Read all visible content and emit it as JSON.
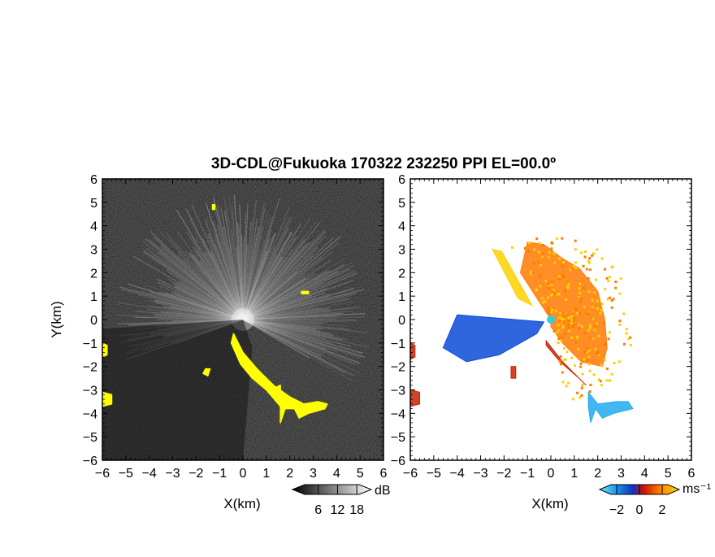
{
  "title": "3D-CDL@Fukuoka 170322 232250 PPI EL=00.0º",
  "chart_data": [
    {
      "type": "heatmap",
      "panel": "left",
      "quantity": "backscatter intensity",
      "xlabel": "X(km)",
      "ylabel": "Y(km)",
      "xlim": [
        -6,
        6
      ],
      "ylim": [
        -6,
        6
      ],
      "x_ticks": [
        "-6",
        "-5",
        "-4",
        "-3",
        "-2",
        "-1",
        "0",
        "1",
        "2",
        "3",
        "4",
        "5",
        "6"
      ],
      "y_ticks": [
        "-6",
        "-5",
        "-4",
        "-3",
        "-2",
        "-1",
        "0",
        "1",
        "2",
        "3",
        "4",
        "5",
        "6"
      ],
      "colorbar": {
        "unit": "dB",
        "ticks": [
          "6",
          "12",
          "18"
        ],
        "range": [
          0,
          21
        ]
      },
      "colors": {
        "background": "#1a1a1a",
        "rays": "#f0f0f0",
        "echo": "#ffff00"
      },
      "echo_regions": [
        {
          "name": "lower-right echo band",
          "points": [
            [
              -0.4,
              -0.6
            ],
            [
              0,
              -1.4
            ],
            [
              0.6,
              -2.1
            ],
            [
              1.3,
              -2.8
            ],
            [
              2.0,
              -3.3
            ],
            [
              2.6,
              -3.6
            ],
            [
              3.2,
              -3.5
            ],
            [
              3.6,
              -3.6
            ],
            [
              3.5,
              -3.8
            ],
            [
              2.8,
              -4.0
            ],
            [
              2.4,
              -4.2
            ],
            [
              2.2,
              -3.8
            ],
            [
              1.8,
              -3.8
            ],
            [
              1.6,
              -4.4
            ],
            [
              1.6,
              -3.7
            ],
            [
              1.0,
              -3.0
            ],
            [
              0.4,
              -2.5
            ],
            [
              -0.1,
              -1.9
            ],
            [
              -0.5,
              -1.0
            ]
          ]
        },
        {
          "name": "west edge echo upper",
          "points": [
            [
              -6,
              -1.0
            ],
            [
              -5.8,
              -1.1
            ],
            [
              -5.8,
              -1.5
            ],
            [
              -6,
              -1.6
            ]
          ]
        },
        {
          "name": "west edge echo lower",
          "points": [
            [
              -6,
              -3.1
            ],
            [
              -5.6,
              -3.2
            ],
            [
              -5.6,
              -3.6
            ],
            [
              -6,
              -3.7
            ]
          ]
        },
        {
          "name": "echo speck 1",
          "points": [
            [
              -1.6,
              -2.1
            ],
            [
              -1.4,
              -2.1
            ],
            [
              -1.5,
              -2.4
            ],
            [
              -1.7,
              -2.3
            ]
          ]
        },
        {
          "name": "echo speck 2",
          "points": [
            [
              2.5,
              1.2
            ],
            [
              2.8,
              1.2
            ],
            [
              2.8,
              1.1
            ],
            [
              2.5,
              1.1
            ]
          ]
        },
        {
          "name": "echo speck 3",
          "points": [
            [
              -1.3,
              4.9
            ],
            [
              -1.2,
              4.9
            ],
            [
              -1.2,
              4.7
            ],
            [
              -1.3,
              4.7
            ]
          ]
        },
        {
          "name": "echo speck 4",
          "points": [
            [
              1.4,
              -2.9
            ],
            [
              1.6,
              -2.8
            ],
            [
              1.6,
              -3.2
            ],
            [
              1.5,
              -3.2
            ]
          ]
        }
      ],
      "ray_sector": {
        "center": [
          0,
          0
        ],
        "radius_km": 5.5,
        "from_deg": -30,
        "to_deg": 200
      }
    },
    {
      "type": "heatmap",
      "panel": "right",
      "quantity": "Doppler velocity",
      "xlabel": "X(km)",
      "ylabel": "",
      "xlim": [
        -6,
        6
      ],
      "ylim": [
        -6,
        6
      ],
      "x_ticks": [
        "-6",
        "-5",
        "-4",
        "-3",
        "-2",
        "-1",
        "0",
        "1",
        "2",
        "3",
        "4",
        "5",
        "6"
      ],
      "y_ticks": [
        "-6",
        "-5",
        "-4",
        "-3",
        "-2",
        "-1",
        "0",
        "1",
        "2",
        "3",
        "4",
        "5",
        "6"
      ],
      "colorbar": {
        "unit": "ms⁻¹",
        "ticks": [
          "-2",
          "0",
          "2"
        ],
        "range": [
          -3,
          3
        ]
      },
      "colors": {
        "background": "#ffffff",
        "negative": "#0a4bd8",
        "negative_light": "#22aaee",
        "zero": "#cc2200",
        "positive": "#ff7a00",
        "positive_light": "#ffd000",
        "center_marker": "#33ccdd"
      },
      "velocity_regions": [
        {
          "name": "warm plume",
          "velocity": 2,
          "points": [
            [
              0,
              0
            ],
            [
              -1.3,
              2.0
            ],
            [
              -1.0,
              3.3
            ],
            [
              -0.3,
              3.2
            ],
            [
              0.5,
              2.6
            ],
            [
              1.2,
              2.2
            ],
            [
              2.0,
              1.2
            ],
            [
              2.3,
              0
            ],
            [
              2.4,
              -1.2
            ],
            [
              2.2,
              -2.0
            ],
            [
              1.3,
              -1.8
            ],
            [
              0.5,
              -1.0
            ],
            [
              0,
              -0.3
            ]
          ]
        },
        {
          "name": "warm fringe",
          "velocity": 2.5,
          "points": [
            [
              -2.5,
              3.0
            ],
            [
              -2.1,
              2.9
            ],
            [
              -0.8,
              0.6
            ],
            [
              -1.4,
              0.9
            ]
          ]
        },
        {
          "name": "blue sector",
          "velocity": -2,
          "points": [
            [
              -0.3,
              -0.1
            ],
            [
              -4.0,
              0.2
            ],
            [
              -4.6,
              -1.2
            ],
            [
              -3.6,
              -1.8
            ],
            [
              -2.2,
              -1.5
            ],
            [
              -0.6,
              -0.6
            ]
          ]
        },
        {
          "name": "lower-right rim",
          "velocity": 0,
          "points": [
            [
              -0.2,
              -0.9
            ],
            [
              0.5,
              -1.8
            ],
            [
              1.3,
              -2.6
            ],
            [
              1.5,
              -2.8
            ],
            [
              1.2,
              -2.5
            ],
            [
              0.4,
              -1.8
            ],
            [
              -0.2,
              -1.1
            ]
          ]
        },
        {
          "name": "lower-right tail",
          "velocity": -1,
          "points": [
            [
              1.6,
              -3.1
            ],
            [
              2.0,
              -3.6
            ],
            [
              2.8,
              -3.5
            ],
            [
              3.3,
              -3.5
            ],
            [
              3.5,
              -3.8
            ],
            [
              2.7,
              -4.0
            ],
            [
              2.2,
              -4.2
            ],
            [
              1.9,
              -3.8
            ],
            [
              1.7,
              -4.4
            ],
            [
              1.6,
              -3.7
            ]
          ]
        },
        {
          "name": "west edge echo upper",
          "velocity": 0,
          "points": [
            [
              -6,
              -1.0
            ],
            [
              -5.8,
              -1.1
            ],
            [
              -5.8,
              -1.6
            ],
            [
              -6,
              -1.7
            ]
          ]
        },
        {
          "name": "west edge echo lower",
          "velocity": 0,
          "points": [
            [
              -6,
              -3.0
            ],
            [
              -5.6,
              -3.1
            ],
            [
              -5.6,
              -3.6
            ],
            [
              -6,
              -3.7
            ]
          ]
        },
        {
          "name": "speck near -1.5,-2.2",
          "velocity": 0,
          "points": [
            [
              -1.7,
              -2.0
            ],
            [
              -1.5,
              -2.0
            ],
            [
              -1.5,
              -2.5
            ],
            [
              -1.7,
              -2.5
            ]
          ]
        }
      ]
    }
  ]
}
